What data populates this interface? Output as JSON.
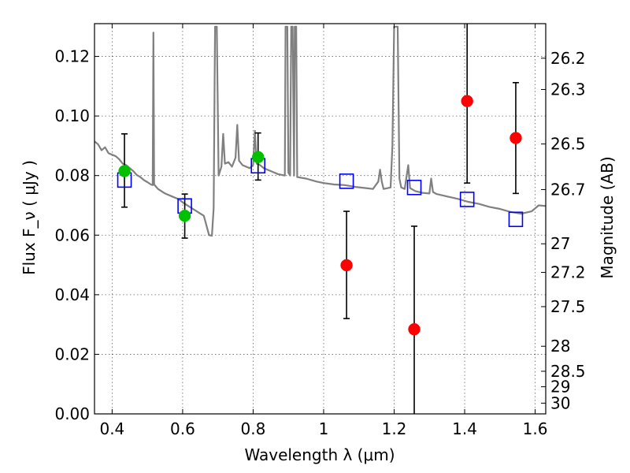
{
  "chart_data": {
    "type": "scatter",
    "xlabel": "Wavelength  λ (μm)",
    "ylabel": "Flux  F_ν  ( μJy )",
    "y2label": "Magnitude (AB)",
    "xlim": [
      0.35,
      1.63
    ],
    "ylim": [
      0.0,
      0.131
    ],
    "x_ticks": [
      0.4,
      0.6,
      0.8,
      1.0,
      1.2,
      1.4,
      1.6
    ],
    "x_tick_labels": [
      "0.4",
      "0.6",
      "0.8",
      "1",
      "1.2",
      "1.4",
      "1.6"
    ],
    "y_ticks": [
      0.0,
      0.02,
      0.04,
      0.06,
      0.08,
      0.1,
      0.12
    ],
    "y_tick_labels": [
      "0.00",
      "0.02",
      "0.04",
      "0.06",
      "0.08",
      "0.10",
      "0.12"
    ],
    "y2_ticks": [
      {
        "label": "26.2",
        "flux": 0.1194
      },
      {
        "label": "26.3",
        "flux": 0.1089
      },
      {
        "label": "26.5",
        "flux": 0.0906
      },
      {
        "label": "26.7",
        "flux": 0.0753
      },
      {
        "label": "27",
        "flux": 0.0571
      },
      {
        "label": "27.2",
        "flux": 0.0475
      },
      {
        "label": "27.5",
        "flux": 0.036
      },
      {
        "label": "28",
        "flux": 0.0227
      },
      {
        "label": "28.5",
        "flux": 0.0143
      },
      {
        "label": "29",
        "flux": 0.0091
      },
      {
        "label": "30",
        "flux": 0.0036
      }
    ],
    "grid": true,
    "series": [
      {
        "marker": "circle",
        "color": "#00c000",
        "points": [
          {
            "x": 0.435,
            "y": 0.0815,
            "yerr_low": 0.0694,
            "yerr_high": 0.094
          },
          {
            "x": 0.606,
            "y": 0.0665,
            "yerr_low": 0.059,
            "yerr_high": 0.0738
          },
          {
            "x": 0.814,
            "y": 0.0862,
            "yerr_low": 0.0785,
            "yerr_high": 0.0943
          }
        ]
      },
      {
        "marker": "circle",
        "color": "#ff0000",
        "points": [
          {
            "x": 1.065,
            "y": 0.0499,
            "yerr_low": 0.032,
            "yerr_high": 0.068
          },
          {
            "x": 1.257,
            "y": 0.0284,
            "yerr_low": 0.0,
            "yerr_high": 0.063
          },
          {
            "x": 1.407,
            "y": 0.105,
            "yerr_low": 0.0775,
            "yerr_high": 0.131
          },
          {
            "x": 1.545,
            "y": 0.0926,
            "yerr_low": 0.074,
            "yerr_high": 0.1112
          }
        ]
      },
      {
        "marker": "open-square",
        "color": "#0000ff",
        "points": [
          {
            "x": 0.435,
            "y": 0.0785
          },
          {
            "x": 0.606,
            "y": 0.0698
          },
          {
            "x": 0.814,
            "y": 0.0833
          },
          {
            "x": 1.065,
            "y": 0.0781
          },
          {
            "x": 1.257,
            "y": 0.076
          },
          {
            "x": 1.407,
            "y": 0.072
          },
          {
            "x": 1.545,
            "y": 0.0653
          }
        ]
      },
      {
        "marker": "line",
        "color": "#808080",
        "points": [
          [
            0.35,
            0.0915
          ],
          [
            0.36,
            0.0905
          ],
          [
            0.37,
            0.0885
          ],
          [
            0.38,
            0.0895
          ],
          [
            0.39,
            0.0875
          ],
          [
            0.4,
            0.087
          ],
          [
            0.41,
            0.0865
          ],
          [
            0.42,
            0.0855
          ],
          [
            0.43,
            0.084
          ],
          [
            0.44,
            0.0835
          ],
          [
            0.45,
            0.0825
          ],
          [
            0.46,
            0.0815
          ],
          [
            0.47,
            0.0802
          ],
          [
            0.48,
            0.0795
          ],
          [
            0.49,
            0.0785
          ],
          [
            0.5,
            0.0778
          ],
          [
            0.51,
            0.077
          ],
          [
            0.515,
            0.0768
          ],
          [
            0.517,
            0.128
          ],
          [
            0.519,
            0.077
          ],
          [
            0.53,
            0.0755
          ],
          [
            0.55,
            0.074
          ],
          [
            0.57,
            0.073
          ],
          [
            0.59,
            0.072
          ],
          [
            0.6,
            0.071
          ],
          [
            0.62,
            0.0695
          ],
          [
            0.64,
            0.068
          ],
          [
            0.66,
            0.0665
          ],
          [
            0.675,
            0.06
          ],
          [
            0.683,
            0.0598
          ],
          [
            0.688,
            0.069
          ],
          [
            0.692,
            0.13
          ],
          [
            0.697,
            0.13
          ],
          [
            0.702,
            0.08
          ],
          [
            0.71,
            0.083
          ],
          [
            0.715,
            0.094
          ],
          [
            0.72,
            0.084
          ],
          [
            0.73,
            0.0845
          ],
          [
            0.74,
            0.083
          ],
          [
            0.75,
            0.086
          ],
          [
            0.755,
            0.097
          ],
          [
            0.76,
            0.085
          ],
          [
            0.77,
            0.0835
          ],
          [
            0.78,
            0.083
          ],
          [
            0.79,
            0.0825
          ],
          [
            0.8,
            0.0835
          ],
          [
            0.805,
            0.095
          ],
          [
            0.81,
            0.084
          ],
          [
            0.82,
            0.0835
          ],
          [
            0.83,
            0.0825
          ],
          [
            0.85,
            0.0815
          ],
          [
            0.87,
            0.0805
          ],
          [
            0.89,
            0.08
          ],
          [
            0.892,
            0.13
          ],
          [
            0.897,
            0.13
          ],
          [
            0.9,
            0.081
          ],
          [
            0.905,
            0.08
          ],
          [
            0.908,
            0.13
          ],
          [
            0.912,
            0.13
          ],
          [
            0.916,
            0.08
          ],
          [
            0.918,
            0.13
          ],
          [
            0.922,
            0.13
          ],
          [
            0.925,
            0.0795
          ],
          [
            0.95,
            0.079
          ],
          [
            0.98,
            0.078
          ],
          [
            1.0,
            0.0775
          ],
          [
            1.03,
            0.077
          ],
          [
            1.06,
            0.0768
          ],
          [
            1.09,
            0.0762
          ],
          [
            1.12,
            0.0758
          ],
          [
            1.14,
            0.0755
          ],
          [
            1.155,
            0.078
          ],
          [
            1.16,
            0.082
          ],
          [
            1.165,
            0.078
          ],
          [
            1.17,
            0.0755
          ],
          [
            1.19,
            0.076
          ],
          [
            1.195,
            0.09
          ],
          [
            1.2,
            0.13
          ],
          [
            1.21,
            0.13
          ],
          [
            1.215,
            0.079
          ],
          [
            1.22,
            0.076
          ],
          [
            1.23,
            0.0755
          ],
          [
            1.24,
            0.0835
          ],
          [
            1.245,
            0.0758
          ],
          [
            1.26,
            0.0748
          ],
          [
            1.28,
            0.0742
          ],
          [
            1.3,
            0.074
          ],
          [
            1.305,
            0.079
          ],
          [
            1.31,
            0.0745
          ],
          [
            1.32,
            0.0738
          ],
          [
            1.35,
            0.073
          ],
          [
            1.38,
            0.0722
          ],
          [
            1.41,
            0.0712
          ],
          [
            1.44,
            0.0705
          ],
          [
            1.47,
            0.0695
          ],
          [
            1.5,
            0.0688
          ],
          [
            1.53,
            0.0678
          ],
          [
            1.56,
            0.0672
          ],
          [
            1.59,
            0.068
          ],
          [
            1.61,
            0.07
          ],
          [
            1.63,
            0.0698
          ]
        ]
      }
    ]
  }
}
